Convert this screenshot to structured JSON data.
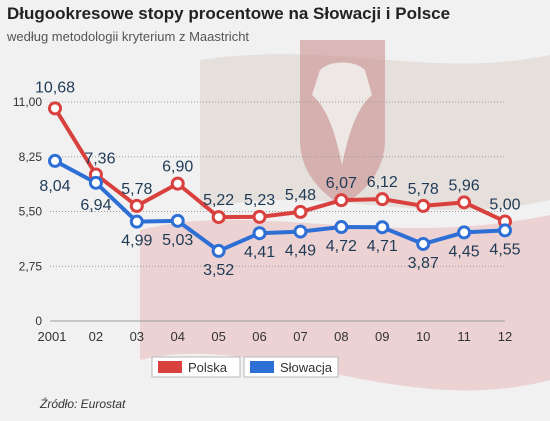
{
  "title": "Długookresowe stopy procentowe na Słowacji i Polsce",
  "subtitle": "według metodologii kryterium z Maastricht",
  "source": "Źródło: Eurostat",
  "colors": {
    "polska": "#d9413f",
    "slowacja": "#2e6fd6",
    "background": "#f1f1f1"
  },
  "chart_data": {
    "type": "line",
    "x": [
      "2001",
      "02",
      "03",
      "04",
      "05",
      "06",
      "07",
      "08",
      "09",
      "10",
      "11",
      "12"
    ],
    "series": [
      {
        "name": "Polska",
        "values": [
          10.68,
          7.36,
          5.78,
          6.9,
          5.22,
          5.23,
          5.48,
          6.07,
          6.12,
          5.78,
          5.96,
          5.0
        ]
      },
      {
        "name": "Słowacja",
        "values": [
          8.04,
          6.94,
          4.99,
          5.03,
          3.52,
          4.41,
          4.49,
          4.72,
          4.71,
          3.87,
          4.45,
          4.55
        ]
      }
    ],
    "value_labels": {
      "Polska": [
        "10,68",
        "7,36",
        "5,78",
        "6,90",
        "5,22",
        "5,23",
        "5,48",
        "6,07",
        "6,12",
        "5,78",
        "5,96",
        "5,00"
      ],
      "Słowacja": [
        "8,04",
        "6,94",
        "4,99",
        "5,03",
        "3,52",
        "4,41",
        "4,49",
        "4,72",
        "4,71",
        "3,87",
        "4,45",
        "4,55"
      ]
    },
    "yticks": [
      "0",
      "2,75",
      "5,50",
      "8,25",
      "11,00"
    ],
    "ytick_values": [
      0,
      2.75,
      5.5,
      8.25,
      11
    ],
    "ylim": [
      0,
      11
    ],
    "grid": true,
    "legend_position": "bottom-center"
  }
}
